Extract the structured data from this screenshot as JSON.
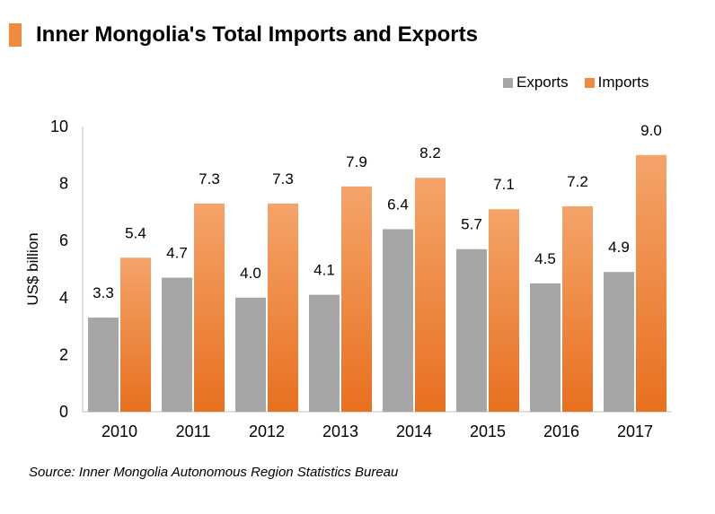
{
  "title": "Inner Mongolia's Total Imports and Exports",
  "source": "Source: Inner Mongolia Autonomous Region Statistics Bureau",
  "colors": {
    "accent": "#f08a3e",
    "exports": "#a6a6a6",
    "imports_top": "#f4a46a",
    "imports_bottom": "#e8701f"
  },
  "chart_data": {
    "type": "bar",
    "categories": [
      "2010",
      "2011",
      "2012",
      "2013",
      "2014",
      "2015",
      "2016",
      "2017"
    ],
    "series": [
      {
        "name": "Exports",
        "values": [
          3.3,
          4.7,
          4.0,
          4.1,
          6.4,
          5.7,
          4.5,
          4.9
        ],
        "labels": [
          "3.3",
          "4.7",
          "4.0",
          "4.1",
          "6.4",
          "5.7",
          "4.5",
          "4.9"
        ]
      },
      {
        "name": "Imports",
        "values": [
          5.4,
          7.3,
          7.3,
          7.9,
          8.2,
          7.1,
          7.2,
          9.0
        ],
        "labels": [
          "5.4",
          "7.3",
          "7.3",
          "7.9",
          "8.2",
          "7.1",
          "7.2",
          "9.0"
        ]
      }
    ],
    "ylabel": "US$ billion",
    "ylim": [
      0,
      10
    ],
    "yticks": [
      "0",
      "2",
      "4",
      "6",
      "8",
      "10"
    ],
    "legend_position": "top-right",
    "grid": false
  }
}
